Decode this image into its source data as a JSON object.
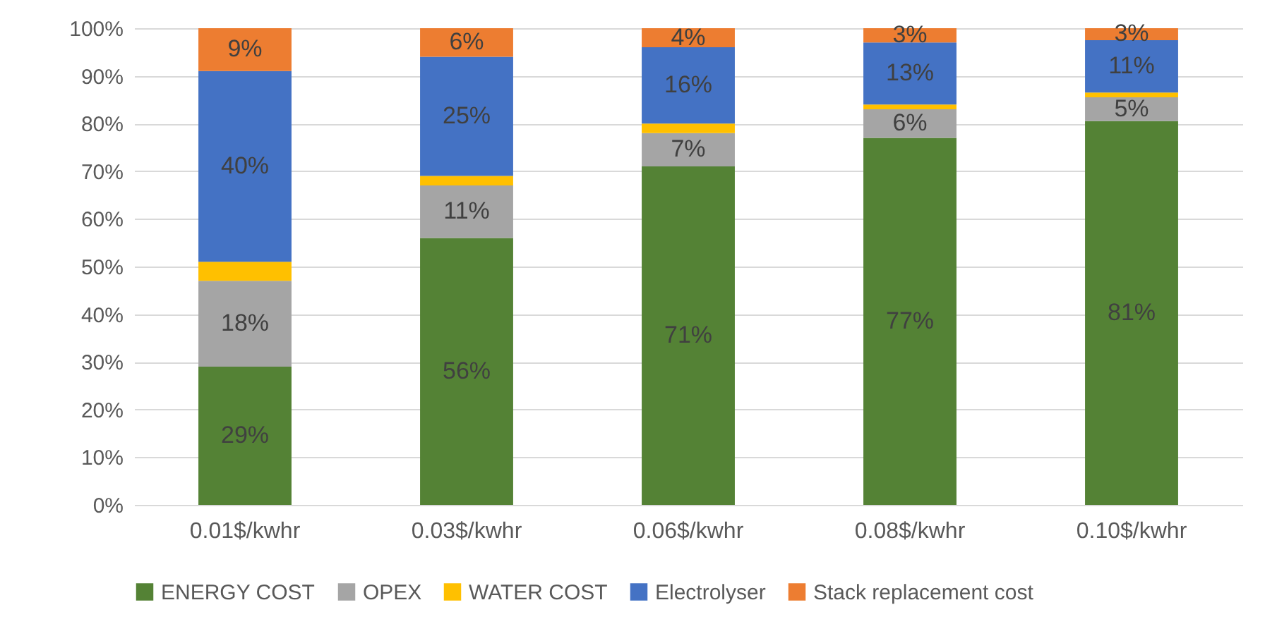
{
  "chart_data": {
    "type": "bar",
    "stacked": true,
    "categories": [
      "0.01$/kwhr",
      "0.03$/kwhr",
      "0.06$/kwhr",
      "0.08$/kwhr",
      "0.10$/kwhr"
    ],
    "series": [
      {
        "name": "ENERGY COST",
        "color": "#548235",
        "values": [
          29,
          56,
          71,
          77,
          80.5
        ],
        "value_labels": [
          "29%",
          "56%",
          "71%",
          "77%",
          "81%"
        ]
      },
      {
        "name": "OPEX",
        "color": "#a5a5a5",
        "values": [
          18,
          11,
          7,
          6,
          5
        ],
        "value_labels": [
          "18%",
          "11%",
          "7%",
          "6%",
          "5%"
        ]
      },
      {
        "name": "WATER COST",
        "color": "#ffc000",
        "values": [
          4,
          2,
          2,
          1,
          1
        ],
        "value_labels": [
          null,
          null,
          null,
          null,
          null
        ]
      },
      {
        "name": "Electrolyser",
        "color": "#4472c4",
        "values": [
          40,
          25,
          16,
          13,
          11
        ],
        "value_labels": [
          "40%",
          "25%",
          "16%",
          "13%",
          "11%"
        ]
      },
      {
        "name": "Stack replacement cost",
        "color": "#ed7d31",
        "values": [
          9,
          6,
          4,
          3,
          2.5
        ],
        "value_labels": [
          "9%",
          "6%",
          "4%",
          "3%",
          "3%"
        ]
      }
    ],
    "ylim": [
      0,
      100
    ],
    "yticks": [
      {
        "value": 0,
        "label": "0%"
      },
      {
        "value": 10,
        "label": "10%"
      },
      {
        "value": 20,
        "label": "20%"
      },
      {
        "value": 30,
        "label": "30%"
      },
      {
        "value": 40,
        "label": "40%"
      },
      {
        "value": 50,
        "label": "50%"
      },
      {
        "value": 60,
        "label": "60%"
      },
      {
        "value": 70,
        "label": "70%"
      },
      {
        "value": 80,
        "label": "80%"
      },
      {
        "value": 90,
        "label": "90%"
      },
      {
        "value": 100,
        "label": "100%"
      }
    ],
    "grid": "y",
    "legend": "bottom"
  }
}
